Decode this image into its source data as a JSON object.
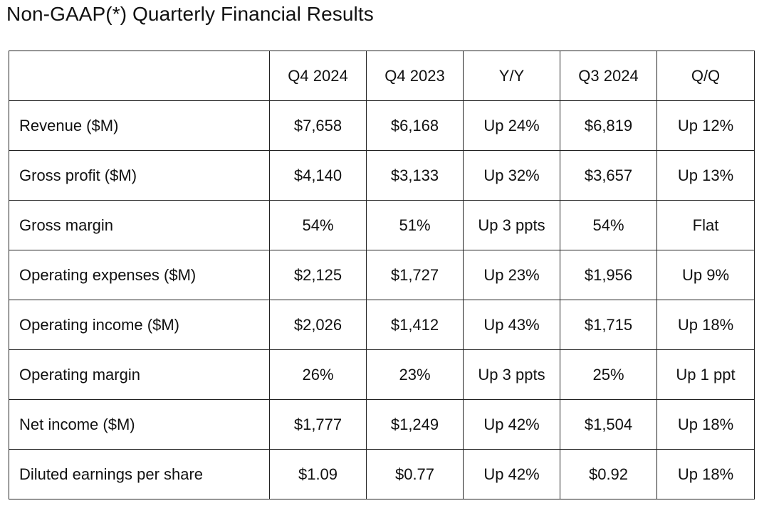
{
  "title": "Non-GAAP(*) Quarterly Financial Results",
  "table": {
    "headers": [
      "",
      "Q4 2024",
      "Q4 2023",
      "Y/Y",
      "Q3 2024",
      "Q/Q"
    ],
    "rows": [
      {
        "label": "Revenue ($M)",
        "cells": [
          "$7,658",
          "$6,168",
          "Up 24%",
          "$6,819",
          "Up 12%"
        ]
      },
      {
        "label": "Gross profit ($M)",
        "cells": [
          "$4,140",
          "$3,133",
          "Up 32%",
          "$3,657",
          "Up 13%"
        ]
      },
      {
        "label": "Gross margin",
        "cells": [
          "54%",
          "51%",
          "Up 3 ppts",
          "54%",
          "Flat"
        ]
      },
      {
        "label": "Operating expenses ($M)",
        "cells": [
          "$2,125",
          "$1,727",
          "Up 23%",
          "$1,956",
          "Up 9%"
        ]
      },
      {
        "label": "Operating income ($M)",
        "cells": [
          "$2,026",
          "$1,412",
          "Up 43%",
          "$1,715",
          "Up 18%"
        ]
      },
      {
        "label": "Operating margin",
        "cells": [
          "26%",
          "23%",
          "Up 3 ppts",
          "25%",
          "Up 1 ppt"
        ]
      },
      {
        "label": "Net income ($M)",
        "cells": [
          "$1,777",
          "$1,249",
          "Up 42%",
          "$1,504",
          "Up 18%"
        ]
      },
      {
        "label": "Diluted earnings per share",
        "cells": [
          "$1.09",
          "$0.77",
          "Up 42%",
          "$0.92",
          "Up 18%"
        ]
      }
    ]
  }
}
